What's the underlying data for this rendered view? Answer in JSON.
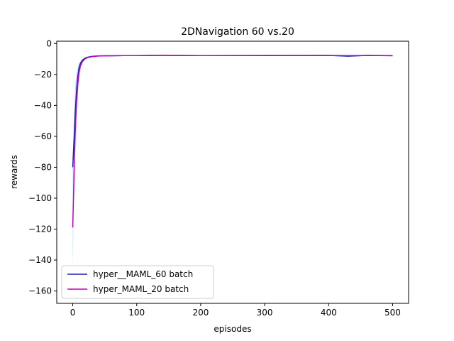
{
  "chart_data": {
    "type": "line",
    "title": "2DNavigation 60 vs.20",
    "xlabel": "episodes",
    "ylabel": "rewards",
    "xlim": [
      -25,
      525
    ],
    "ylim": [
      -168,
      1.5
    ],
    "xticks": [
      0,
      100,
      200,
      300,
      400,
      500
    ],
    "yticks": [
      0,
      -20,
      -40,
      -60,
      -80,
      -100,
      -120,
      -140,
      -160
    ],
    "grid": false,
    "legend_position": "lower-left",
    "series": [
      {
        "name": "hyper__MAML_60 batch",
        "color": "#1f1fb4",
        "fill_color": "#87cefa",
        "x": [
          0,
          2,
          4,
          6,
          8,
          10,
          12,
          15,
          18,
          22,
          26,
          30,
          40,
          50,
          60,
          80,
          100,
          140,
          200,
          300,
          400,
          430,
          460,
          500
        ],
        "y": [
          -80,
          -62,
          -44,
          -30,
          -21,
          -15.5,
          -12.8,
          -10.8,
          -9.8,
          -9.0,
          -8.6,
          -8.3,
          -8.0,
          -7.9,
          -7.9,
          -7.8,
          -7.8,
          -7.7,
          -7.8,
          -7.8,
          -7.7,
          -8.2,
          -7.7,
          -7.8
        ]
      },
      {
        "name": "hyper_MAML_20 batch",
        "color": "#c000c0",
        "fill_color": "#87cefa",
        "x": [
          0,
          2,
          4,
          6,
          8,
          10,
          12,
          15,
          18,
          22,
          26,
          30,
          40,
          50,
          60,
          80,
          100,
          140,
          200,
          300,
          400,
          430,
          460,
          500
        ],
        "y": [
          -119,
          -85,
          -56,
          -38,
          -26,
          -18.5,
          -14.5,
          -11.8,
          -10.3,
          -9.3,
          -8.8,
          -8.5,
          -8.1,
          -8.0,
          -7.9,
          -7.8,
          -7.8,
          -7.6,
          -7.8,
          -7.7,
          -7.7,
          -7.8,
          -7.7,
          -7.9
        ]
      }
    ],
    "band": {
      "x": [
        0,
        1,
        2,
        3,
        4,
        6,
        8,
        10,
        14,
        20
      ],
      "low": [
        -145,
        -118,
        -92,
        -70,
        -52,
        -35,
        -24,
        -17,
        -12,
        -9.6
      ],
      "high": [
        -78,
        -62,
        -46,
        -34,
        -26,
        -19,
        -15,
        -12.5,
        -10.5,
        -9.0
      ]
    }
  }
}
